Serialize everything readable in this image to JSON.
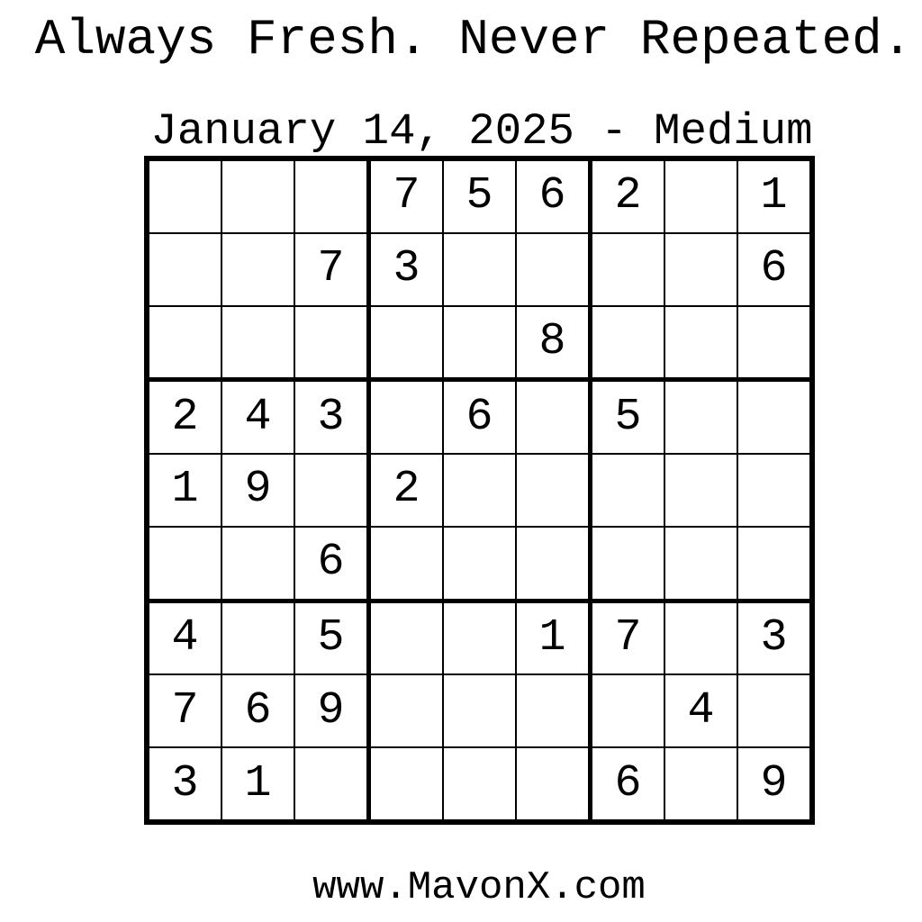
{
  "header": {
    "headline": "Always Fresh. Never Repeated.",
    "subtitle": "January 14, 2025 - Medium"
  },
  "grid": {
    "rows": [
      [
        "",
        "",
        "",
        "7",
        "5",
        "6",
        "2",
        "",
        "1"
      ],
      [
        "",
        "",
        "7",
        "3",
        "",
        "",
        "",
        "",
        "6"
      ],
      [
        "",
        "",
        "",
        "",
        "",
        "8",
        "",
        "",
        ""
      ],
      [
        "2",
        "4",
        "3",
        "",
        "6",
        "",
        "5",
        "",
        ""
      ],
      [
        "1",
        "9",
        "",
        "2",
        "",
        "",
        "",
        "",
        ""
      ],
      [
        "",
        "",
        "6",
        "",
        "",
        "",
        "",
        "",
        ""
      ],
      [
        "4",
        "",
        "5",
        "",
        "",
        "1",
        "7",
        "",
        "3"
      ],
      [
        "7",
        "6",
        "9",
        "",
        "",
        "",
        "",
        "4",
        ""
      ],
      [
        "3",
        "1",
        "",
        "",
        "",
        "",
        "6",
        "",
        "9"
      ]
    ]
  },
  "footer": {
    "website": "www.MavonX.com"
  }
}
